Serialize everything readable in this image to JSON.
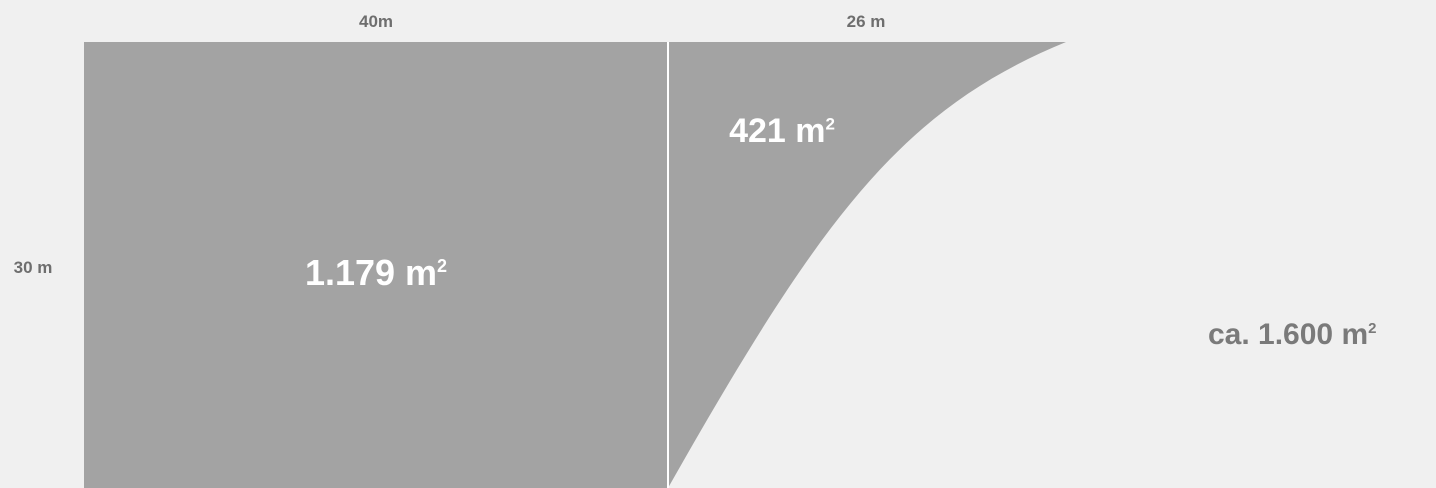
{
  "dimensions": {
    "width_left": "40m",
    "width_right": "26 m",
    "height": "30 m"
  },
  "areas": {
    "rect_value": "1.179 m",
    "curve_value": "421 m",
    "exponent": "2"
  },
  "total": {
    "value": "ca. 1.600 m",
    "exponent": "2"
  },
  "colors": {
    "background": "#f0f0f0",
    "fill": "#a3a3a3",
    "divider": "#ffffff",
    "label_text": "#6e6e6e",
    "area_text": "#ffffff"
  }
}
